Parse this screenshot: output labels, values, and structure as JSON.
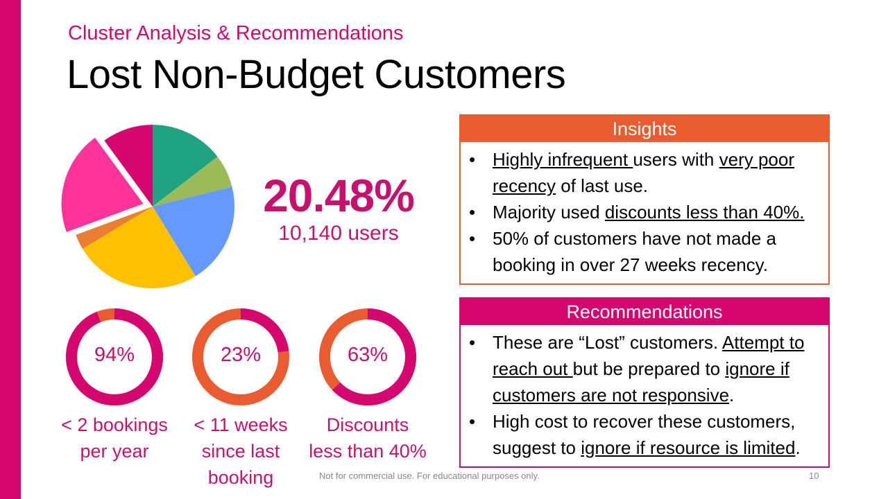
{
  "header": {
    "subtitle": "Cluster Analysis & Recommendations",
    "title": "Lost Non-Budget Customers"
  },
  "highlight": {
    "percent": "20.48%",
    "users": "10,140 users"
  },
  "colors": {
    "brand": "#D6066F",
    "accent_orange": "#EA5B2F",
    "pie_teal": "#1FA383",
    "pie_green": "#9BBB59",
    "pie_blue": "#6699FF",
    "pie_yellow": "#FFC000",
    "pie_orange": "#ED7D31",
    "pie_pink": "#FF3399",
    "pie_magenta": "#D6066F"
  },
  "chart_data": {
    "type": "pie",
    "values": [
      14.5,
      6.5,
      20.0,
      25.0,
      3.0,
      20.48,
      10.0
    ],
    "colors": [
      "#1FA383",
      "#9BBB59",
      "#6699FF",
      "#FFC000",
      "#ED7D31",
      "#FF3399",
      "#D6066F"
    ],
    "exploded_index": 5
  },
  "stats": [
    {
      "value": "94%",
      "fraction": 0.94,
      "label_line1": "< 2 bookings",
      "label_line2": "per year",
      "label_line3": ""
    },
    {
      "value": "23%",
      "fraction": 0.23,
      "label_line1": "< 11 weeks",
      "label_line2": "since last",
      "label_line3": "booking"
    },
    {
      "value": "63%",
      "fraction": 0.63,
      "label_line1": "Discounts",
      "label_line2": "less than 40%",
      "label_line3": ""
    }
  ],
  "insights": {
    "heading": "Insights",
    "b1_u1": "Highly infrequent ",
    "b1_t1": "users with ",
    "b1_u2": "very poor recency",
    "b1_t2": " of last use.",
    "b2_t1": "Majority used ",
    "b2_u1": "discounts less than 40%.",
    "b3_t1": "50% of customers have not made a booking in over 27 weeks recency."
  },
  "recommendations": {
    "heading": "Recommendations",
    "b1_t1": "These are “Lost” customers. ",
    "b1_u1": "Attempt to reach out ",
    "b1_t2": "but be prepared to ",
    "b1_u2": "ignore if customers are not responsive",
    "b1_t3": ".",
    "b2_t1": "High cost to recover these customers, suggest to ",
    "b2_u1": "ignore if resource is limited",
    "b2_t2": "."
  },
  "footer": {
    "note": "Not for commercial use. For educational purposes only.",
    "page": "10"
  }
}
